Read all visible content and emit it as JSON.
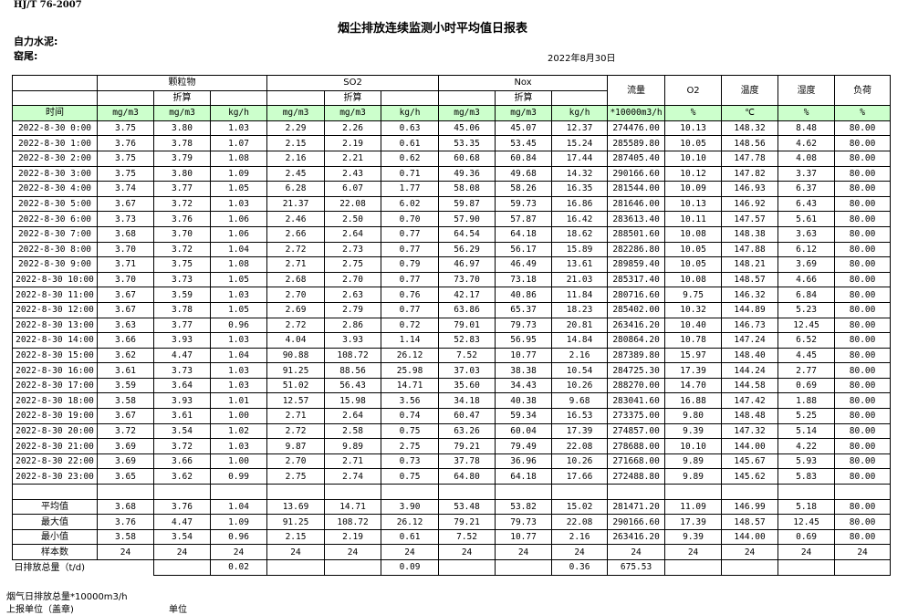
{
  "header": {
    "standard": "HJ/T  76-2007",
    "title": "烟尘排放连续监测小时平均值日报表",
    "company": "自力水泥:",
    "kiln": "窑尾:",
    "date": "2022年8月30日"
  },
  "table": {
    "groups": {
      "pm": "颗粒物",
      "so2": "SO2",
      "nox": "Nox",
      "flow": "流量",
      "o2": "O2",
      "temp": "温度",
      "humidity": "湿度",
      "load": "负荷"
    },
    "converted": "折算",
    "units": [
      "时间",
      "mg/m3",
      "mg/m3",
      "kg/h",
      "mg/m3",
      "mg/m3",
      "kg/h",
      "mg/m3",
      "mg/m3",
      "kg/h",
      "*10000m3/h",
      "%",
      "℃",
      "%",
      "%"
    ],
    "rows": [
      [
        "2022-8-30 0:00",
        "3.75",
        "3.80",
        "1.03",
        "2.29",
        "2.26",
        "0.63",
        "45.06",
        "45.07",
        "12.37",
        "274476.00",
        "10.13",
        "148.32",
        "8.48",
        "80.00"
      ],
      [
        "2022-8-30 1:00",
        "3.76",
        "3.78",
        "1.07",
        "2.15",
        "2.19",
        "0.61",
        "53.35",
        "53.45",
        "15.24",
        "285589.80",
        "10.05",
        "148.56",
        "4.62",
        "80.00"
      ],
      [
        "2022-8-30 2:00",
        "3.75",
        "3.79",
        "1.08",
        "2.16",
        "2.21",
        "0.62",
        "60.68",
        "60.84",
        "17.44",
        "287405.40",
        "10.10",
        "147.78",
        "4.08",
        "80.00"
      ],
      [
        "2022-8-30 3:00",
        "3.75",
        "3.80",
        "1.09",
        "2.45",
        "2.43",
        "0.71",
        "49.36",
        "49.68",
        "14.32",
        "290166.60",
        "10.12",
        "147.82",
        "3.37",
        "80.00"
      ],
      [
        "2022-8-30 4:00",
        "3.74",
        "3.77",
        "1.05",
        "6.28",
        "6.07",
        "1.77",
        "58.08",
        "58.26",
        "16.35",
        "281544.00",
        "10.09",
        "146.93",
        "6.37",
        "80.00"
      ],
      [
        "2022-8-30 5:00",
        "3.67",
        "3.72",
        "1.03",
        "21.37",
        "22.08",
        "6.02",
        "59.87",
        "59.73",
        "16.86",
        "281646.00",
        "10.13",
        "146.92",
        "6.43",
        "80.00"
      ],
      [
        "2022-8-30 6:00",
        "3.73",
        "3.76",
        "1.06",
        "2.46",
        "2.50",
        "0.70",
        "57.90",
        "57.87",
        "16.42",
        "283613.40",
        "10.11",
        "147.57",
        "5.61",
        "80.00"
      ],
      [
        "2022-8-30 7:00",
        "3.68",
        "3.70",
        "1.06",
        "2.66",
        "2.64",
        "0.77",
        "64.54",
        "64.18",
        "18.62",
        "288501.60",
        "10.08",
        "148.38",
        "3.63",
        "80.00"
      ],
      [
        "2022-8-30 8:00",
        "3.70",
        "3.72",
        "1.04",
        "2.72",
        "2.73",
        "0.77",
        "56.29",
        "56.17",
        "15.89",
        "282286.80",
        "10.05",
        "147.88",
        "6.12",
        "80.00"
      ],
      [
        "2022-8-30 9:00",
        "3.71",
        "3.75",
        "1.08",
        "2.71",
        "2.75",
        "0.79",
        "46.97",
        "46.49",
        "13.61",
        "289859.40",
        "10.05",
        "148.21",
        "3.69",
        "80.00"
      ],
      [
        "2022-8-30 10:00",
        "3.70",
        "3.73",
        "1.05",
        "2.68",
        "2.70",
        "0.77",
        "73.70",
        "73.18",
        "21.03",
        "285317.40",
        "10.08",
        "148.57",
        "4.66",
        "80.00"
      ],
      [
        "2022-8-30 11:00",
        "3.67",
        "3.59",
        "1.03",
        "2.70",
        "2.63",
        "0.76",
        "42.17",
        "40.86",
        "11.84",
        "280716.60",
        "9.75",
        "146.32",
        "6.84",
        "80.00"
      ],
      [
        "2022-8-30 12:00",
        "3.67",
        "3.78",
        "1.05",
        "2.69",
        "2.79",
        "0.77",
        "63.86",
        "65.37",
        "18.23",
        "285402.00",
        "10.32",
        "144.89",
        "5.23",
        "80.00"
      ],
      [
        "2022-8-30 13:00",
        "3.63",
        "3.77",
        "0.96",
        "2.72",
        "2.86",
        "0.72",
        "79.01",
        "79.73",
        "20.81",
        "263416.20",
        "10.40",
        "146.73",
        "12.45",
        "80.00"
      ],
      [
        "2022-8-30 14:00",
        "3.66",
        "3.93",
        "1.03",
        "4.04",
        "3.93",
        "1.14",
        "52.83",
        "56.95",
        "14.84",
        "280864.20",
        "10.78",
        "147.24",
        "6.52",
        "80.00"
      ],
      [
        "2022-8-30 15:00",
        "3.62",
        "4.47",
        "1.04",
        "90.88",
        "108.72",
        "26.12",
        "7.52",
        "10.77",
        "2.16",
        "287389.80",
        "15.97",
        "148.40",
        "4.45",
        "80.00"
      ],
      [
        "2022-8-30 16:00",
        "3.61",
        "3.73",
        "1.03",
        "91.25",
        "88.56",
        "25.98",
        "37.03",
        "38.38",
        "10.54",
        "284725.30",
        "17.39",
        "144.24",
        "2.77",
        "80.00"
      ],
      [
        "2022-8-30 17:00",
        "3.59",
        "3.64",
        "1.03",
        "51.02",
        "56.43",
        "14.71",
        "35.60",
        "34.43",
        "10.26",
        "288270.00",
        "14.70",
        "144.58",
        "0.69",
        "80.00"
      ],
      [
        "2022-8-30 18:00",
        "3.58",
        "3.93",
        "1.01",
        "12.57",
        "15.98",
        "3.56",
        "34.18",
        "40.38",
        "9.68",
        "283041.60",
        "16.88",
        "147.42",
        "1.88",
        "80.00"
      ],
      [
        "2022-8-30 19:00",
        "3.67",
        "3.61",
        "1.00",
        "2.71",
        "2.64",
        "0.74",
        "60.47",
        "59.34",
        "16.53",
        "273375.00",
        "9.80",
        "148.48",
        "5.25",
        "80.00"
      ],
      [
        "2022-8-30 20:00",
        "3.72",
        "3.54",
        "1.02",
        "2.72",
        "2.58",
        "0.75",
        "63.26",
        "60.04",
        "17.39",
        "274857.00",
        "9.39",
        "147.32",
        "5.14",
        "80.00"
      ],
      [
        "2022-8-30 21:00",
        "3.69",
        "3.72",
        "1.03",
        "9.87",
        "9.89",
        "2.75",
        "79.21",
        "79.49",
        "22.08",
        "278688.00",
        "10.10",
        "144.00",
        "4.22",
        "80.00"
      ],
      [
        "2022-8-30 22:00",
        "3.69",
        "3.66",
        "1.00",
        "2.70",
        "2.71",
        "0.73",
        "37.78",
        "36.96",
        "10.26",
        "271668.00",
        "9.89",
        "145.67",
        "5.93",
        "80.00"
      ],
      [
        "2022-8-30 23:00",
        "3.65",
        "3.62",
        "0.99",
        "2.75",
        "2.74",
        "0.75",
        "64.80",
        "64.18",
        "17.66",
        "272488.80",
        "9.89",
        "145.62",
        "5.83",
        "80.00"
      ]
    ],
    "summary": [
      [
        "平均值",
        "3.68",
        "3.76",
        "1.04",
        "13.69",
        "14.71",
        "3.90",
        "53.48",
        "53.82",
        "15.02",
        "281471.20",
        "11.09",
        "146.99",
        "5.18",
        "80.00"
      ],
      [
        "最大值",
        "3.76",
        "4.47",
        "1.09",
        "91.25",
        "108.72",
        "26.12",
        "79.21",
        "79.73",
        "22.08",
        "290166.60",
        "17.39",
        "148.57",
        "12.45",
        "80.00"
      ],
      [
        "最小值",
        "3.58",
        "3.54",
        "0.96",
        "2.15",
        "2.19",
        "0.61",
        "7.52",
        "10.77",
        "2.16",
        "263416.20",
        "9.39",
        "144.00",
        "0.69",
        "80.00"
      ],
      [
        "样本数",
        "24",
        "24",
        "24",
        "24",
        "24",
        "24",
        "24",
        "24",
        "24",
        "24",
        "24",
        "24",
        "24",
        "24"
      ]
    ],
    "total": {
      "label": "日排放总量（t/d)",
      "values": [
        "",
        "0.02",
        "",
        "",
        "0.09",
        "",
        "",
        "0.36",
        "675.53",
        "",
        "",
        "",
        ""
      ]
    }
  },
  "footer": {
    "flue_gas_total": "烟气日排放总量*10000m3/h",
    "reporting_unit": "上报单位（盖章)",
    "unit": "单位"
  }
}
